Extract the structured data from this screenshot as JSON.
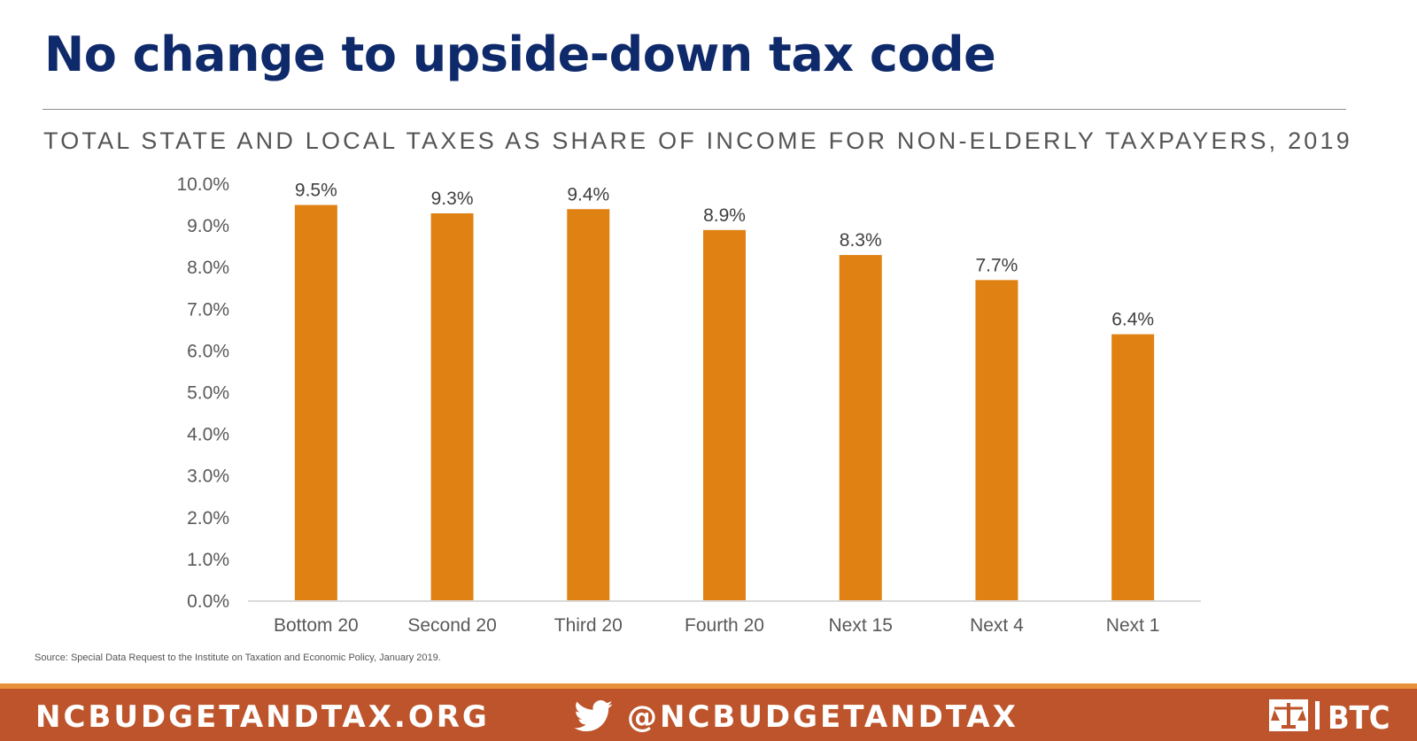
{
  "title": "No change to upside-down tax code",
  "subtitle": "TOTAL STATE AND LOCAL TAXES AS SHARE OF INCOME FOR NON-ELDERLY TAXPAYERS, 2019",
  "source": "Source: Special Data Request to the  Institute on Taxation and Economic Policy, January 2019.",
  "footer": {
    "website": "NCBUDGETANDTAX.ORG",
    "twitter_icon": "twitter-bird-icon",
    "twitter_handle": "@NCBUDGETANDTAX",
    "logo_text": "BTC"
  },
  "colors": {
    "title": "#0f2a6b",
    "bar": "#e08213",
    "footer": "#bd542b",
    "footer_stripe": "#e8903a"
  },
  "chart_data": {
    "type": "bar",
    "categories": [
      "Bottom 20",
      "Second 20",
      "Third 20",
      "Fourth 20",
      "Next 15",
      "Next 4",
      "Next 1"
    ],
    "values": [
      9.5,
      9.3,
      9.4,
      8.9,
      8.3,
      7.7,
      6.4
    ],
    "data_labels": [
      "9.5%",
      "9.3%",
      "9.4%",
      "8.9%",
      "8.3%",
      "7.7%",
      "6.4%"
    ],
    "yticks": [
      "0.0%",
      "1.0%",
      "2.0%",
      "3.0%",
      "4.0%",
      "5.0%",
      "6.0%",
      "7.0%",
      "8.0%",
      "9.0%",
      "10.0%"
    ],
    "ylim": [
      0,
      10
    ],
    "xlabel": "",
    "ylabel": "",
    "grid": false,
    "legend": "none"
  }
}
